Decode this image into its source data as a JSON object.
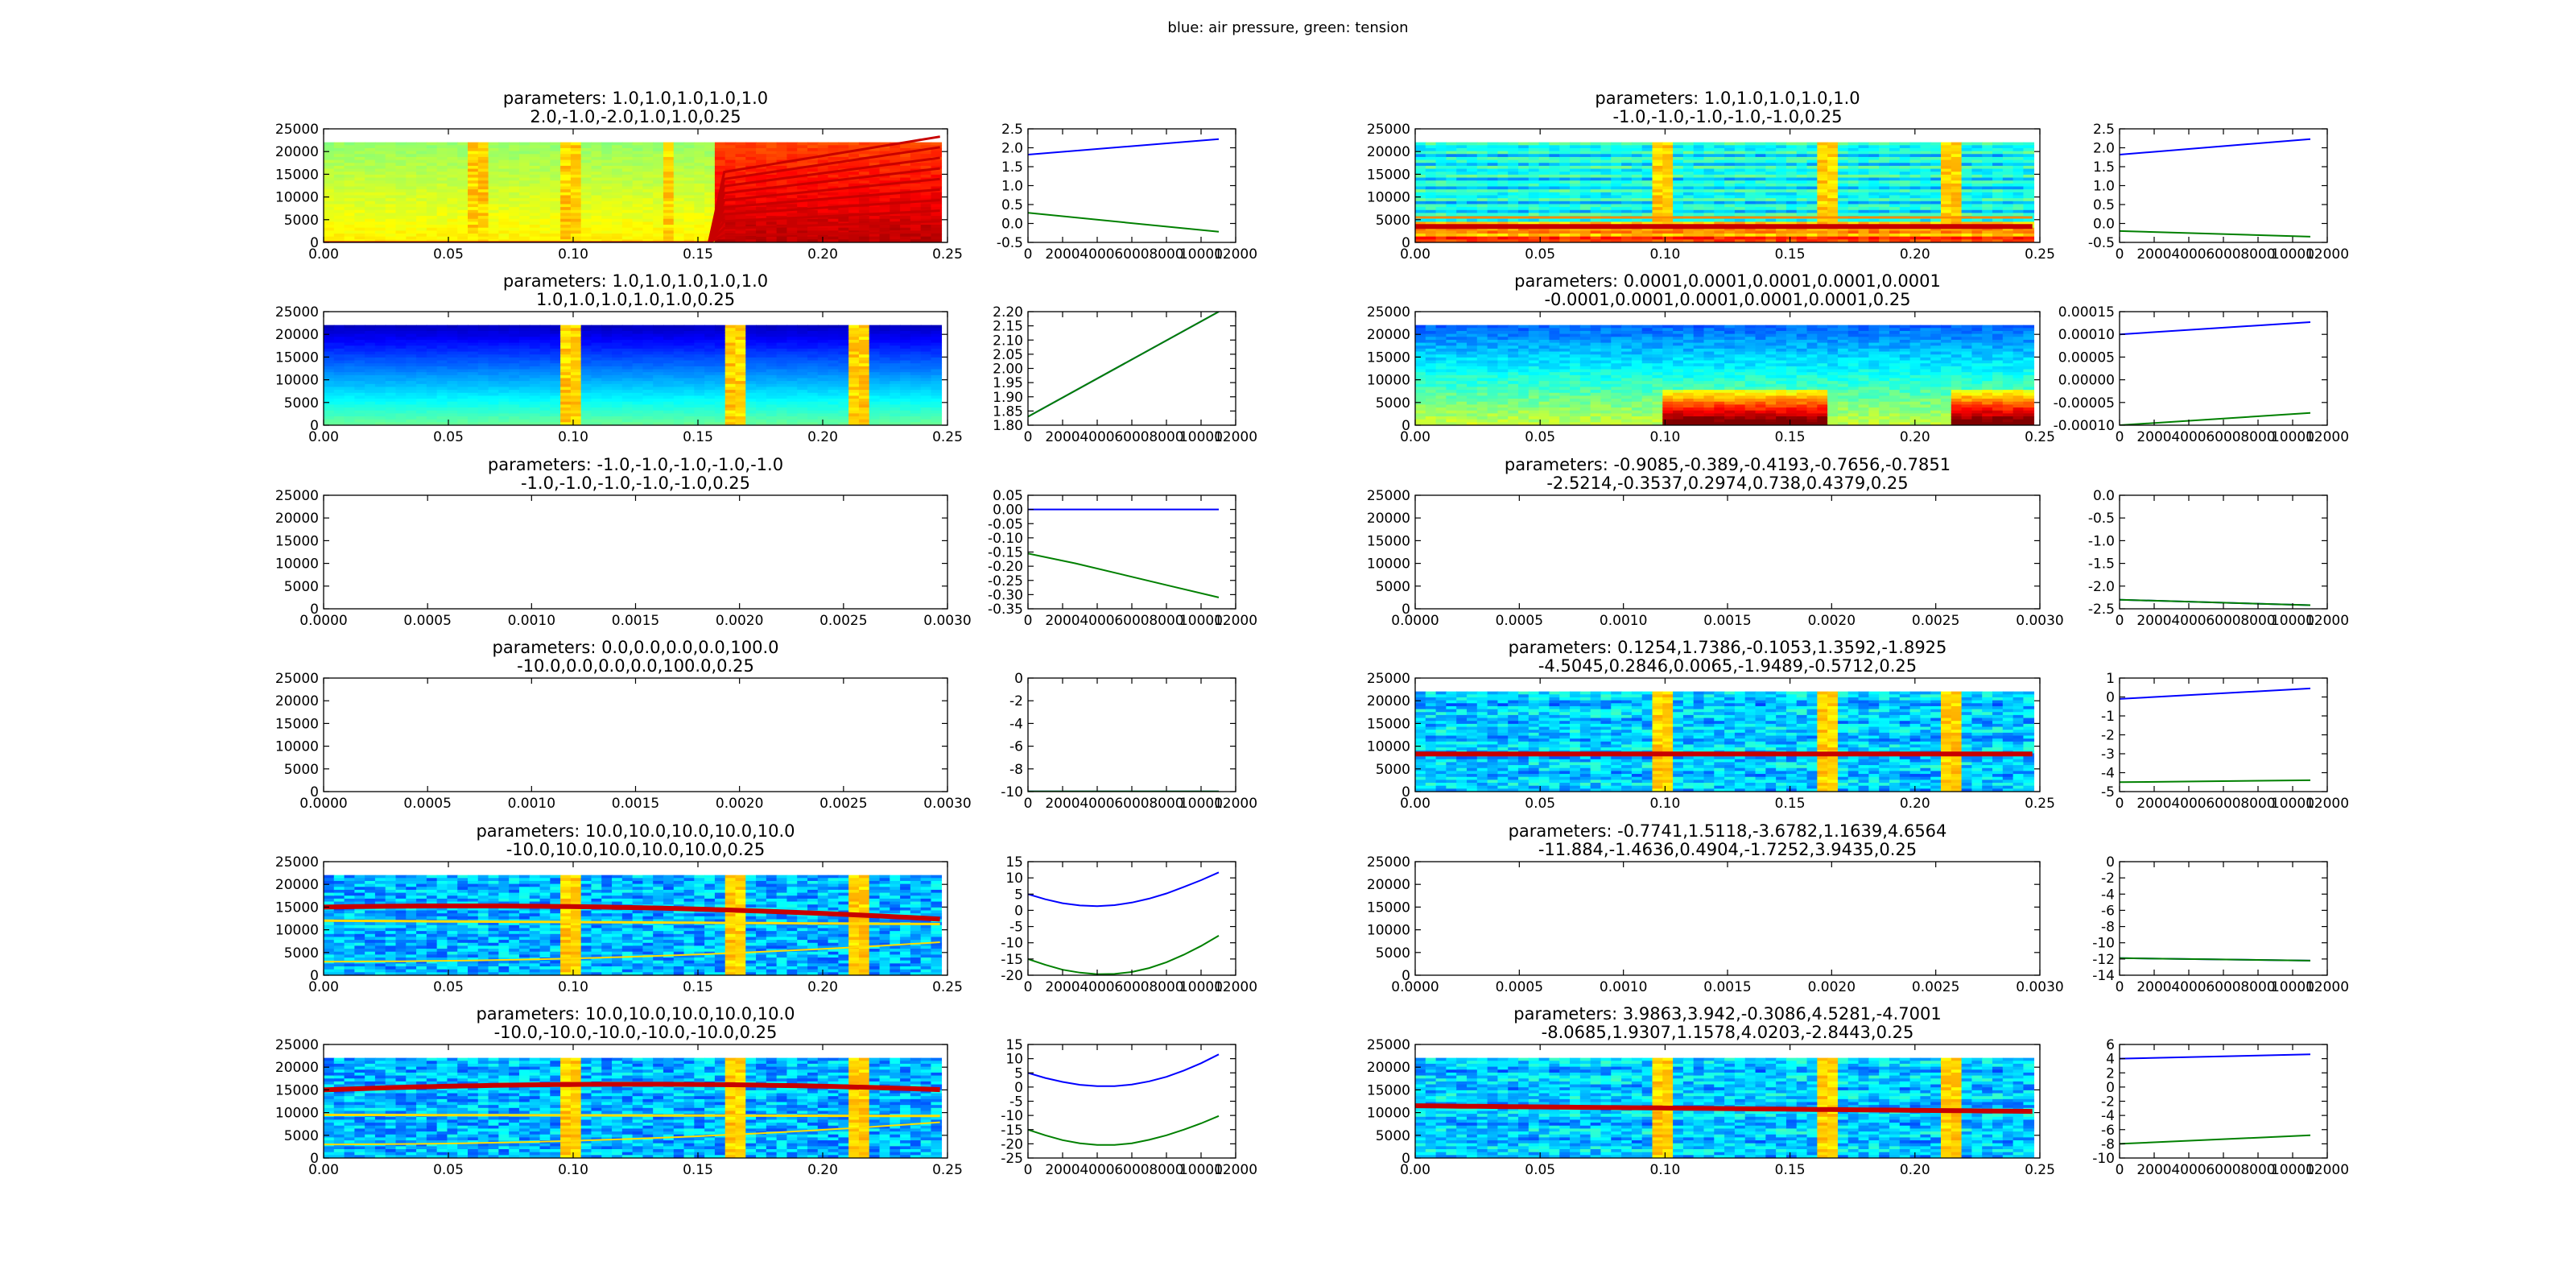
{
  "figure": {
    "suptitle": "blue: air pressure, green: tension"
  },
  "chart_data": [
    {
      "type": "heatmap",
      "panel": "spectrogram",
      "title": [
        "parameters: 1.0,1.0,1.0,1.0,1.0",
        "2.0,-1.0,-2.0,1.0,1.0,0.25"
      ],
      "xlim": [
        0,
        0.25
      ],
      "ylim": [
        0,
        25000
      ],
      "xticks": [
        "0.00",
        "0.05",
        "0.10",
        "0.15",
        "0.20",
        "0.25"
      ],
      "yticks": [
        "0",
        "5000",
        "10000",
        "15000",
        "20000",
        "25000"
      ],
      "style": "rainbow",
      "trajectories": {
        "type": "line",
        "xlim": [
          0,
          12000
        ],
        "ylim": [
          -0.5,
          2.5
        ],
        "xticks": [
          "0",
          "2000",
          "4000",
          "6000",
          "8000",
          "10000",
          "12000"
        ],
        "yticks": [
          "-0.5",
          "0.0",
          "0.5",
          "1.0",
          "1.5",
          "2.0",
          "2.5"
        ],
        "series": [
          {
            "color": "#0000ff",
            "x": [
              0,
              11025
            ],
            "y": [
              1.82,
              2.23
            ]
          },
          {
            "color": "#008000",
            "x": [
              0,
              11025
            ],
            "y": [
              0.28,
              -0.22
            ]
          }
        ]
      }
    },
    {
      "type": "heatmap",
      "panel": "spectrogram",
      "title": [
        "parameters: 1.0,1.0,1.0,1.0,1.0",
        "-1.0,-1.0,-1.0,-1.0,-1.0,0.25"
      ],
      "xlim": [
        0,
        0.25
      ],
      "ylim": [
        0,
        25000
      ],
      "xticks": [
        "0.00",
        "0.05",
        "0.10",
        "0.15",
        "0.20",
        "0.25"
      ],
      "yticks": [
        "0",
        "5000",
        "10000",
        "15000",
        "20000",
        "25000"
      ],
      "style": "harmonics",
      "trajectories": {
        "type": "line",
        "xlim": [
          0,
          12000
        ],
        "ylim": [
          -0.5,
          2.5
        ],
        "xticks": [
          "0",
          "2000",
          "4000",
          "6000",
          "8000",
          "10000",
          "12000"
        ],
        "yticks": [
          "-0.5",
          "0.0",
          "0.5",
          "1.0",
          "1.5",
          "2.0",
          "2.5"
        ],
        "series": [
          {
            "color": "#0000ff",
            "x": [
              0,
              11025
            ],
            "y": [
              1.82,
              2.23
            ]
          },
          {
            "color": "#008000",
            "x": [
              0,
              11025
            ],
            "y": [
              -0.2,
              -0.35
            ]
          }
        ]
      }
    },
    {
      "type": "heatmap",
      "panel": "spectrogram",
      "title": [
        "parameters: 1.0,1.0,1.0,1.0,1.0",
        "1.0,1.0,1.0,1.0,1.0,0.25"
      ],
      "xlim": [
        0,
        0.25
      ],
      "ylim": [
        0,
        25000
      ],
      "xticks": [
        "0.00",
        "0.05",
        "0.10",
        "0.15",
        "0.20",
        "0.25"
      ],
      "yticks": [
        "0",
        "5000",
        "10000",
        "15000",
        "20000",
        "25000"
      ],
      "style": "blue",
      "trajectories": {
        "type": "line",
        "xlim": [
          0,
          12000
        ],
        "ylim": [
          1.8,
          2.2
        ],
        "xticks": [
          "0",
          "2000",
          "4000",
          "6000",
          "8000",
          "10000",
          "12000"
        ],
        "yticks": [
          "1.80",
          "1.85",
          "1.90",
          "1.95",
          "2.00",
          "2.05",
          "2.10",
          "2.15",
          "2.20"
        ],
        "series": [
          {
            "color": "#0000ff",
            "x": [
              0,
              11025
            ],
            "y": [
              1.83,
              2.2
            ]
          },
          {
            "color": "#008000",
            "x": [
              0,
              11025
            ],
            "y": [
              1.83,
              2.2
            ]
          }
        ]
      }
    },
    {
      "type": "heatmap",
      "panel": "spectrogram",
      "title": [
        "parameters: 0.0001,0.0001,0.0001,0.0001,0.0001",
        "-0.0001,0.0001,0.0001,0.0001,0.0001,0.25"
      ],
      "xlim": [
        0,
        0.25
      ],
      "ylim": [
        0,
        25000
      ],
      "xticks": [
        "0.00",
        "0.05",
        "0.10",
        "0.15",
        "0.20",
        "0.25"
      ],
      "yticks": [
        "0",
        "5000",
        "10000",
        "15000",
        "20000",
        "25000"
      ],
      "style": "lowband",
      "trajectories": {
        "type": "line",
        "xlim": [
          0,
          12000
        ],
        "ylim": [
          -0.0001,
          0.00015
        ],
        "xticks": [
          "0",
          "2000",
          "4000",
          "6000",
          "8000",
          "10000",
          "12000"
        ],
        "yticks": [
          "-0.00010",
          "-0.00005",
          "0.00000",
          "0.00005",
          "0.00010",
          "0.00015"
        ],
        "series": [
          {
            "color": "#0000ff",
            "x": [
              0,
              11025
            ],
            "y": [
              0.0001,
              0.000127
            ]
          },
          {
            "color": "#008000",
            "x": [
              0,
              11025
            ],
            "y": [
              -0.0001,
              -7.3e-05
            ]
          }
        ]
      }
    },
    {
      "type": "heatmap",
      "panel": "spectrogram",
      "title": [
        "parameters: -1.0,-1.0,-1.0,-1.0,-1.0",
        "-1.0,-1.0,-1.0,-1.0,-1.0,0.25"
      ],
      "xlim": [
        0,
        0.003
      ],
      "ylim": [
        0,
        25000
      ],
      "xticks": [
        "0.0000",
        "0.0005",
        "0.0010",
        "0.0015",
        "0.0020",
        "0.0025",
        "0.0030"
      ],
      "yticks": [
        "0",
        "5000",
        "10000",
        "15000",
        "20000",
        "25000"
      ],
      "style": "empty",
      "trajectories": {
        "type": "line",
        "xlim": [
          0,
          12000
        ],
        "ylim": [
          -0.35,
          0.05
        ],
        "xticks": [
          "0",
          "2000",
          "4000",
          "6000",
          "8000",
          "10000",
          "12000"
        ],
        "yticks": [
          "-0.35",
          "-0.30",
          "-0.25",
          "-0.20",
          "-0.15",
          "-0.10",
          "-0.05",
          "0.00",
          "0.05"
        ],
        "series": [
          {
            "color": "#0000ff",
            "x": [
              0,
              11025
            ],
            "y": [
              0.0,
              0.0
            ]
          },
          {
            "color": "#008000",
            "x": [
              0,
              2750,
              5500,
              8250,
              11025
            ],
            "y": [
              -0.155,
              -0.19,
              -0.23,
              -0.27,
              -0.31
            ]
          }
        ]
      }
    },
    {
      "type": "heatmap",
      "panel": "spectrogram",
      "title": [
        "parameters: -0.9085,-0.389,-0.4193,-0.7656,-0.7851",
        "-2.5214,-0.3537,0.2974,0.738,0.4379,0.25"
      ],
      "xlim": [
        0,
        0.003
      ],
      "ylim": [
        0,
        25000
      ],
      "xticks": [
        "0.0000",
        "0.0005",
        "0.0010",
        "0.0015",
        "0.0020",
        "0.0025",
        "0.0030"
      ],
      "yticks": [
        "0",
        "5000",
        "10000",
        "15000",
        "20000",
        "25000"
      ],
      "style": "empty",
      "trajectories": {
        "type": "line",
        "xlim": [
          0,
          12000
        ],
        "ylim": [
          -2.5,
          0.0
        ],
        "xticks": [
          "0",
          "2000",
          "4000",
          "6000",
          "8000",
          "10000",
          "12000"
        ],
        "yticks": [
          "-2.5",
          "-2.0",
          "-1.5",
          "-1.0",
          "-0.5",
          "0.0"
        ],
        "series": [
          {
            "color": "#0000ff",
            "x": [
              0,
              11025
            ],
            "y": [
              -2.3,
              -2.42
            ]
          },
          {
            "color": "#008000",
            "x": [
              0,
              11025
            ],
            "y": [
              -2.3,
              -2.42
            ]
          }
        ]
      }
    },
    {
      "type": "heatmap",
      "panel": "spectrogram",
      "title": [
        "parameters: 0.0,0.0,0.0,0.0,100.0",
        "-10.0,0.0,0.0,0.0,100.0,0.25"
      ],
      "xlim": [
        0,
        0.003
      ],
      "ylim": [
        0,
        25000
      ],
      "xticks": [
        "0.0000",
        "0.0005",
        "0.0010",
        "0.0015",
        "0.0020",
        "0.0025",
        "0.0030"
      ],
      "yticks": [
        "0",
        "5000",
        "10000",
        "15000",
        "20000",
        "25000"
      ],
      "style": "empty",
      "trajectories": {
        "type": "line",
        "xlim": [
          0,
          12000
        ],
        "ylim": [
          -10,
          0
        ],
        "xticks": [
          "0",
          "2000",
          "4000",
          "6000",
          "8000",
          "10000",
          "12000"
        ],
        "yticks": [
          "-10",
          "-8",
          "-6",
          "-4",
          "-2",
          "0"
        ],
        "series": [
          {
            "color": "#0000ff",
            "x": [
              0,
              11025
            ],
            "y": [
              -9.98,
              -9.98
            ]
          },
          {
            "color": "#008000",
            "x": [
              0,
              11025
            ],
            "y": [
              -9.98,
              -9.98
            ]
          }
        ]
      }
    },
    {
      "type": "heatmap",
      "panel": "spectrogram",
      "title": [
        "parameters: 0.1254,1.7386,-0.1053,1.3592,-1.8925",
        "-4.5045,0.2846,0.0065,-1.9489,-0.5712,0.25"
      ],
      "xlim": [
        0,
        0.25
      ],
      "ylim": [
        0,
        25000
      ],
      "xticks": [
        "0.00",
        "0.05",
        "0.10",
        "0.15",
        "0.20",
        "0.25"
      ],
      "yticks": [
        "0",
        "5000",
        "10000",
        "15000",
        "20000",
        "25000"
      ],
      "style": "midline",
      "trajectories": {
        "type": "line",
        "xlim": [
          0,
          12000
        ],
        "ylim": [
          -5,
          1
        ],
        "xticks": [
          "0",
          "2000",
          "4000",
          "6000",
          "8000",
          "10000",
          "12000"
        ],
        "yticks": [
          "-5",
          "-4",
          "-3",
          "-2",
          "-1",
          "0",
          "1"
        ],
        "series": [
          {
            "color": "#0000ff",
            "x": [
              0,
              11025
            ],
            "y": [
              -0.1,
              0.45
            ]
          },
          {
            "color": "#008000",
            "x": [
              0,
              11025
            ],
            "y": [
              -4.5,
              -4.4
            ]
          }
        ]
      }
    },
    {
      "type": "heatmap",
      "panel": "spectrogram",
      "title": [
        "parameters: 10.0,10.0,10.0,10.0,10.0",
        "-10.0,10.0,10.0,10.0,10.0,0.25"
      ],
      "xlim": [
        0,
        0.25
      ],
      "ylim": [
        0,
        25000
      ],
      "xticks": [
        "0.00",
        "0.05",
        "0.10",
        "0.15",
        "0.20",
        "0.25"
      ],
      "yticks": [
        "0",
        "5000",
        "10000",
        "15000",
        "20000",
        "25000"
      ],
      "style": "arc1",
      "trajectories": {
        "type": "line",
        "xlim": [
          0,
          12000
        ],
        "ylim": [
          -20,
          15
        ],
        "xticks": [
          "0",
          "2000",
          "4000",
          "6000",
          "8000",
          "10000",
          "12000"
        ],
        "yticks": [
          "-20",
          "-15",
          "-10",
          "-5",
          "0",
          "5",
          "10",
          "15"
        ],
        "series": [
          {
            "color": "#0000ff",
            "x": [
              0,
              1000,
              2000,
              3000,
              4000,
              5000,
              6000,
              7000,
              8000,
              9000,
              10000,
              11025
            ],
            "y": [
              5.0,
              3.4,
              2.2,
              1.5,
              1.3,
              1.6,
              2.4,
              3.6,
              5.2,
              7.2,
              9.3,
              11.7
            ]
          },
          {
            "color": "#008000",
            "x": [
              0,
              1000,
              2000,
              3000,
              4000,
              5000,
              6000,
              7000,
              8000,
              9000,
              10000,
              11025
            ],
            "y": [
              -15.0,
              -16.8,
              -18.3,
              -19.2,
              -19.7,
              -19.6,
              -19.0,
              -17.8,
              -16.0,
              -13.7,
              -11.0,
              -7.8
            ]
          }
        ]
      }
    },
    {
      "type": "heatmap",
      "panel": "spectrogram",
      "title": [
        "parameters: -0.7741,1.5118,-3.6782,1.1639,4.6564",
        "-11.884,-1.4636,0.4904,-1.7252,3.9435,0.25"
      ],
      "xlim": [
        0,
        0.003
      ],
      "ylim": [
        0,
        25000
      ],
      "xticks": [
        "0.0000",
        "0.0005",
        "0.0010",
        "0.0015",
        "0.0020",
        "0.0025",
        "0.0030"
      ],
      "yticks": [
        "0",
        "5000",
        "10000",
        "15000",
        "20000",
        "25000"
      ],
      "style": "empty",
      "trajectories": {
        "type": "line",
        "xlim": [
          0,
          12000
        ],
        "ylim": [
          -14,
          0
        ],
        "xticks": [
          "0",
          "2000",
          "4000",
          "6000",
          "8000",
          "10000",
          "12000"
        ],
        "yticks": [
          "-14",
          "-12",
          "-10",
          "-8",
          "-6",
          "-4",
          "-2",
          "0"
        ],
        "series": [
          {
            "color": "#0000ff",
            "x": [
              0,
              11025
            ],
            "y": [
              -11.9,
              -12.2
            ]
          },
          {
            "color": "#008000",
            "x": [
              0,
              11025
            ],
            "y": [
              -11.9,
              -12.2
            ]
          }
        ]
      }
    },
    {
      "type": "heatmap",
      "panel": "spectrogram",
      "title": [
        "parameters: 10.0,10.0,10.0,10.0,10.0",
        "-10.0,-10.0,-10.0,-10.0,-10.0,0.25"
      ],
      "xlim": [
        0,
        0.25
      ],
      "ylim": [
        0,
        25000
      ],
      "xticks": [
        "0.00",
        "0.05",
        "0.10",
        "0.15",
        "0.20",
        "0.25"
      ],
      "yticks": [
        "0",
        "5000",
        "10000",
        "15000",
        "20000",
        "25000"
      ],
      "style": "arc2",
      "trajectories": {
        "type": "line",
        "xlim": [
          0,
          12000
        ],
        "ylim": [
          -25,
          15
        ],
        "xticks": [
          "0",
          "2000",
          "4000",
          "6000",
          "8000",
          "10000",
          "12000"
        ],
        "yticks": [
          "-25",
          "-20",
          "-15",
          "-10",
          "-5",
          "0",
          "5",
          "10",
          "15"
        ],
        "series": [
          {
            "color": "#0000ff",
            "x": [
              0,
              1000,
              2000,
              3000,
              4000,
              5000,
              6000,
              7000,
              8000,
              9000,
              10000,
              11025
            ],
            "y": [
              5.0,
              3.2,
              1.8,
              0.8,
              0.3,
              0.3,
              0.9,
              2.0,
              3.6,
              5.8,
              8.4,
              11.5
            ]
          },
          {
            "color": "#008000",
            "x": [
              0,
              1000,
              2000,
              3000,
              4000,
              5000,
              6000,
              7000,
              8000,
              9000,
              10000,
              11025
            ],
            "y": [
              -15.0,
              -17.0,
              -18.7,
              -19.8,
              -20.4,
              -20.4,
              -19.8,
              -18.6,
              -17.0,
              -15.0,
              -12.8,
              -10.2
            ]
          }
        ]
      }
    },
    {
      "type": "heatmap",
      "panel": "spectrogram",
      "title": [
        "parameters: 3.9863,3.942,-0.3086,4.5281,-4.7001",
        "-8.0685,1.9307,1.1578,4.0203,-2.8443,0.25"
      ],
      "xlim": [
        0,
        0.25
      ],
      "ylim": [
        0,
        25000
      ],
      "xticks": [
        "0.00",
        "0.05",
        "0.10",
        "0.15",
        "0.20",
        "0.25"
      ],
      "yticks": [
        "0",
        "5000",
        "10000",
        "15000",
        "20000",
        "25000"
      ],
      "style": "midline2",
      "trajectories": {
        "type": "line",
        "xlim": [
          0,
          12000
        ],
        "ylim": [
          -10,
          6
        ],
        "xticks": [
          "0",
          "2000",
          "4000",
          "6000",
          "8000",
          "10000",
          "12000"
        ],
        "yticks": [
          "-10",
          "-8",
          "-6",
          "-4",
          "-2",
          "0",
          "2",
          "4",
          "6"
        ],
        "series": [
          {
            "color": "#0000ff",
            "x": [
              0,
              11025
            ],
            "y": [
              4.0,
              4.6
            ]
          },
          {
            "color": "#008000",
            "x": [
              0,
              11025
            ],
            "y": [
              -8.0,
              -6.8
            ]
          }
        ]
      }
    }
  ]
}
